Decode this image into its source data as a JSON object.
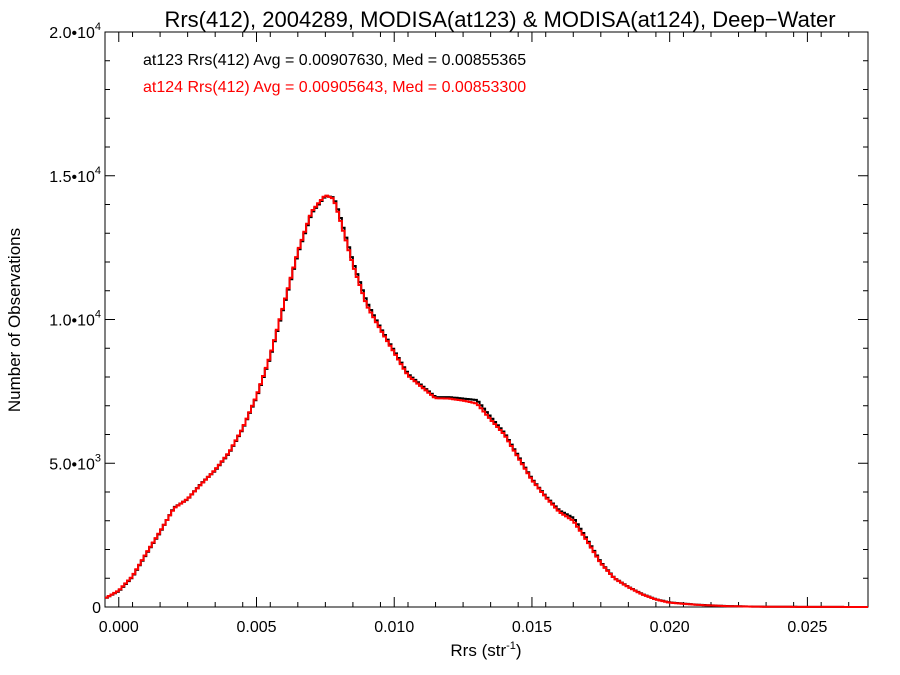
{
  "chart_data": {
    "type": "line",
    "title": "Rrs(412), 2004289, MODISA(at123) & MODISA(at124), Deep−Water",
    "xlabel": "Rrs (str",
    "xlabel_sup": "-1",
    "xlabel_end": ")",
    "ylabel": "Number of Observations",
    "xlim": [
      -0.0005,
      0.0272
    ],
    "ylim": [
      0,
      20000
    ],
    "x_ticks": [
      {
        "value": 0.0,
        "label": "0.000"
      },
      {
        "value": 0.005,
        "label": "0.005"
      },
      {
        "value": 0.01,
        "label": "0.010"
      },
      {
        "value": 0.015,
        "label": "0.015"
      },
      {
        "value": 0.02,
        "label": "0.020"
      },
      {
        "value": 0.025,
        "label": "0.025"
      }
    ],
    "y_ticks": [
      {
        "value": 0,
        "mant": "0",
        "exp": ""
      },
      {
        "value": 5000,
        "mant": "5.0•10",
        "exp": "3"
      },
      {
        "value": 10000,
        "mant": "1.0•10",
        "exp": "4"
      },
      {
        "value": 15000,
        "mant": "1.5•10",
        "exp": "4"
      },
      {
        "value": 20000,
        "mant": "2.0•10",
        "exp": "4"
      }
    ],
    "annotations": [
      {
        "text": "at123 Rrs(412) Avg = 0.00907630, Med = 0.00855365",
        "color": "#000000"
      },
      {
        "text": "at124 Rrs(412) Avg = 0.00905643, Med = 0.00853300",
        "color": "#ff0000"
      }
    ],
    "series": [
      {
        "name": "at123",
        "color": "#000000",
        "x": [
          -0.0005,
          0.0,
          0.0005,
          0.001,
          0.0015,
          0.002,
          0.0025,
          0.003,
          0.0035,
          0.004,
          0.0045,
          0.005,
          0.0055,
          0.006,
          0.0065,
          0.007,
          0.0075,
          0.0078,
          0.008,
          0.0085,
          0.009,
          0.0095,
          0.01,
          0.0105,
          0.011,
          0.0115,
          0.012,
          0.0125,
          0.013,
          0.0135,
          0.014,
          0.0145,
          0.015,
          0.0155,
          0.016,
          0.0165,
          0.017,
          0.0175,
          0.018,
          0.0185,
          0.019,
          0.0195,
          0.02,
          0.021,
          0.022,
          0.023,
          0.024,
          0.025,
          0.026,
          0.0272
        ],
        "y": [
          300,
          550,
          1050,
          1850,
          2600,
          3450,
          3750,
          4300,
          4750,
          5350,
          6200,
          7300,
          8700,
          10500,
          12300,
          13700,
          14300,
          14250,
          13700,
          12000,
          10600,
          9700,
          8900,
          8100,
          7700,
          7300,
          7300,
          7250,
          7200,
          6600,
          6050,
          5250,
          4450,
          3850,
          3350,
          3100,
          2350,
          1550,
          1000,
          700,
          450,
          270,
          160,
          80,
          35,
          15,
          8,
          3,
          2,
          1
        ]
      },
      {
        "name": "at124",
        "color": "#ff0000",
        "x": [
          -0.0005,
          0.0,
          0.0005,
          0.001,
          0.0015,
          0.002,
          0.0025,
          0.003,
          0.0035,
          0.004,
          0.0045,
          0.005,
          0.0055,
          0.006,
          0.0065,
          0.007,
          0.0075,
          0.0078,
          0.008,
          0.0085,
          0.009,
          0.0095,
          0.01,
          0.0105,
          0.011,
          0.0115,
          0.012,
          0.0125,
          0.013,
          0.0135,
          0.014,
          0.0145,
          0.015,
          0.0155,
          0.016,
          0.0165,
          0.017,
          0.0175,
          0.018,
          0.0185,
          0.019,
          0.0195,
          0.02,
          0.021,
          0.022,
          0.023,
          0.024,
          0.025,
          0.026,
          0.0272
        ],
        "y": [
          300,
          570,
          1070,
          1870,
          2620,
          3430,
          3760,
          4280,
          4770,
          5370,
          6220,
          7330,
          8740,
          10550,
          12350,
          13750,
          14330,
          14200,
          13600,
          11900,
          10500,
          9650,
          8850,
          8050,
          7650,
          7260,
          7250,
          7180,
          7080,
          6520,
          6000,
          5200,
          4420,
          3820,
          3300,
          3000,
          2300,
          1520,
          990,
          690,
          440,
          260,
          150,
          75,
          32,
          14,
          7,
          3,
          2,
          1
        ]
      }
    ]
  }
}
